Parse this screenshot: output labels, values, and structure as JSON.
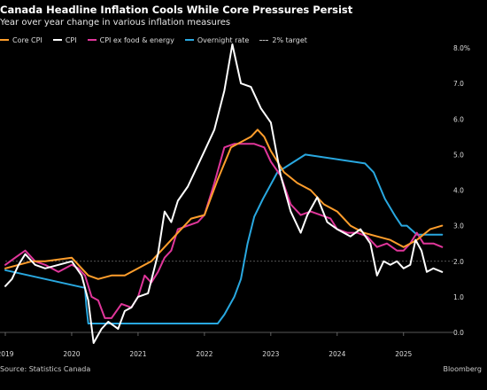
{
  "header": {
    "title": "Canada Headline Inflation Cools While Core Pressures Persist",
    "subtitle": "Year over year change in various inflation measures"
  },
  "footer": {
    "source": "Source: Statistics Canada",
    "brand": "Bloomberg"
  },
  "chart_data": {
    "type": "line",
    "title": "Canada Headline Inflation Cools While Core Pressures Persist",
    "subtitle": "Year over year change in various inflation measures",
    "ylim": [
      0,
      8
    ],
    "y_ticks": [
      "8.0%",
      "7.0",
      "6.0",
      "5.0",
      "4.0",
      "3.0",
      "2.0",
      "1.0",
      "0.0"
    ],
    "x_ticks": [
      "2019",
      "2020",
      "2021",
      "2022",
      "2023",
      "2024",
      "2025"
    ],
    "xlim": [
      2019.0,
      2025.75
    ],
    "grid": false,
    "legend_position": "top-left",
    "series": [
      {
        "name": "Core CPI",
        "color": "#ff9e2c",
        "x": [
          2019.0,
          2019.2,
          2019.4,
          2019.6,
          2019.8,
          2020.0,
          2020.1,
          2020.25,
          2020.4,
          2020.6,
          2020.8,
          2021.0,
          2021.2,
          2021.4,
          2021.6,
          2021.8,
          2022.0,
          2022.2,
          2022.4,
          2022.6,
          2022.7,
          2022.8,
          2022.9,
          2023.0,
          2023.2,
          2023.4,
          2023.6,
          2023.8,
          2024.0,
          2024.2,
          2024.4,
          2024.6,
          2024.8,
          2025.0,
          2025.2,
          2025.4,
          2025.58
        ],
        "y": [
          1.8,
          1.9,
          2.0,
          2.0,
          2.05,
          2.1,
          1.9,
          1.6,
          1.5,
          1.6,
          1.6,
          1.8,
          2.0,
          2.4,
          2.8,
          3.2,
          3.3,
          4.3,
          5.2,
          5.4,
          5.5,
          5.7,
          5.5,
          5.1,
          4.5,
          4.2,
          4.0,
          3.6,
          3.4,
          3.0,
          2.8,
          2.7,
          2.6,
          2.4,
          2.6,
          2.9,
          3.0
        ]
      },
      {
        "name": "CPI",
        "color": "#ffffff",
        "x": [
          2019.0,
          2019.1,
          2019.2,
          2019.3,
          2019.45,
          2019.6,
          2019.8,
          2020.0,
          2020.15,
          2020.25,
          2020.33,
          2020.45,
          2020.55,
          2020.7,
          2020.8,
          2020.9,
          2021.0,
          2021.15,
          2021.3,
          2021.4,
          2021.5,
          2021.6,
          2021.75,
          2021.9,
          2022.0,
          2022.15,
          2022.3,
          2022.42,
          2022.55,
          2022.7,
          2022.85,
          2023.0,
          2023.15,
          2023.3,
          2023.45,
          2023.55,
          2023.7,
          2023.85,
          2024.0,
          2024.2,
          2024.35,
          2024.5,
          2024.6,
          2024.7,
          2024.8,
          2024.9,
          2025.0,
          2025.1,
          2025.18,
          2025.27,
          2025.35,
          2025.45,
          2025.58
        ],
        "y": [
          1.3,
          1.5,
          1.9,
          2.2,
          1.9,
          1.8,
          1.9,
          2.0,
          1.6,
          0.9,
          -0.3,
          0.1,
          0.3,
          0.1,
          0.6,
          0.7,
          1.0,
          1.1,
          2.2,
          3.4,
          3.1,
          3.7,
          4.1,
          4.7,
          5.1,
          5.7,
          6.8,
          8.1,
          7.0,
          6.9,
          6.3,
          5.9,
          4.4,
          3.4,
          2.8,
          3.3,
          3.8,
          3.1,
          2.9,
          2.7,
          2.9,
          2.5,
          1.6,
          2.0,
          1.9,
          2.0,
          1.8,
          1.9,
          2.6,
          2.3,
          1.7,
          1.8,
          1.7
        ]
      },
      {
        "name": "CPI ex food & energy",
        "color": "#e0369a",
        "x": [
          2019.0,
          2019.15,
          2019.3,
          2019.45,
          2019.6,
          2019.8,
          2020.0,
          2020.1,
          2020.2,
          2020.3,
          2020.4,
          2020.5,
          2020.6,
          2020.75,
          2020.9,
          2021.0,
          2021.1,
          2021.2,
          2021.3,
          2021.4,
          2021.5,
          2021.6,
          2021.75,
          2021.9,
          2022.0,
          2022.15,
          2022.3,
          2022.45,
          2022.6,
          2022.75,
          2022.9,
          2023.0,
          2023.15,
          2023.3,
          2023.45,
          2023.6,
          2023.75,
          2023.9,
          2024.0,
          2024.15,
          2024.3,
          2024.45,
          2024.6,
          2024.75,
          2024.9,
          2025.0,
          2025.1,
          2025.2,
          2025.3,
          2025.45,
          2025.58
        ],
        "y": [
          1.9,
          2.1,
          2.3,
          2.0,
          1.9,
          1.7,
          1.9,
          1.8,
          1.6,
          1.0,
          0.9,
          0.4,
          0.4,
          0.8,
          0.7,
          1.0,
          1.6,
          1.4,
          1.7,
          2.1,
          2.3,
          2.9,
          3.0,
          3.1,
          3.3,
          4.2,
          5.2,
          5.3,
          5.3,
          5.3,
          5.2,
          4.8,
          4.4,
          3.6,
          3.3,
          3.4,
          3.3,
          3.2,
          2.9,
          2.8,
          2.8,
          2.7,
          2.4,
          2.5,
          2.3,
          2.3,
          2.5,
          2.8,
          2.5,
          2.5,
          2.4
        ]
      },
      {
        "name": "Overnight rate",
        "color": "#29a8e0",
        "step": true,
        "x": [
          2019.0,
          2020.2,
          2020.22,
          2020.25,
          2022.2,
          2022.3,
          2022.45,
          2022.55,
          2022.65,
          2022.75,
          2022.88,
          2023.1,
          2023.52,
          2024.42,
          2024.55,
          2024.72,
          2024.88,
          2024.97,
          2025.05,
          2025.2,
          2025.58
        ],
        "y": [
          1.75,
          1.25,
          0.75,
          0.25,
          0.25,
          0.5,
          1.0,
          1.5,
          2.5,
          3.25,
          3.75,
          4.5,
          5.0,
          4.75,
          4.5,
          3.75,
          3.25,
          3.0,
          3.0,
          2.75,
          2.75
        ]
      },
      {
        "name": "2% target",
        "color": "#bbbbbb",
        "dashed": true,
        "x": [],
        "y": []
      }
    ]
  }
}
